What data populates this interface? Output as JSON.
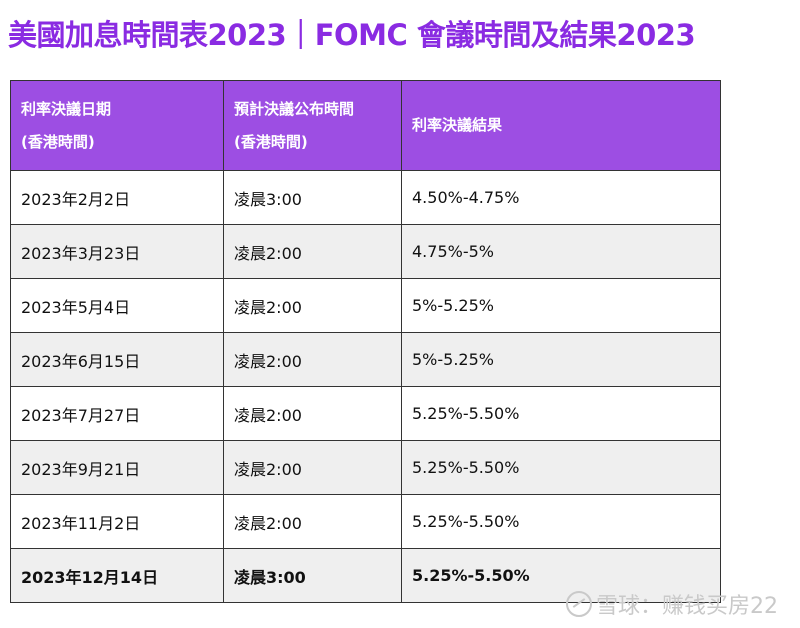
{
  "title": "美國加息時間表2023｜FOMC 會議時間及結果2023",
  "table": {
    "headers": {
      "col1_line1": "利率決議日期",
      "col1_line2": "(香港時間)",
      "col2_line1": "預計決議公布時間",
      "col2_line2": "(香港時間)",
      "col3": "利率決議結果"
    },
    "rows": [
      {
        "date": "2023年2月2日",
        "time": "凌晨3:00",
        "result": "4.50%-4.75%"
      },
      {
        "date": "2023年3月23日",
        "time": "凌晨2:00",
        "result": "4.75%-5%"
      },
      {
        "date": "2023年5月4日",
        "time": "凌晨2:00",
        "result": "5%-5.25%"
      },
      {
        "date": "2023年6月15日",
        "time": "凌晨2:00",
        "result": "5%-5.25%"
      },
      {
        "date": "2023年7月27日",
        "time": "凌晨2:00",
        "result": "5.25%-5.50%"
      },
      {
        "date": "2023年9月21日",
        "time": "凌晨2:00",
        "result": "5.25%-5.50%"
      },
      {
        "date": "2023年11月2日",
        "time": "凌晨2:00",
        "result": "5.25%-5.50%"
      },
      {
        "date": "2023年12月14日",
        "time": "凌晨3:00",
        "result": "5.25%-5.50%"
      }
    ]
  },
  "watermark": "雪球：赚钱买房22",
  "colors": {
    "title": "#8a2be2",
    "header_bg": "#9d4ee3",
    "header_text": "#ffffff",
    "row_alt_bg": "#efefef"
  }
}
